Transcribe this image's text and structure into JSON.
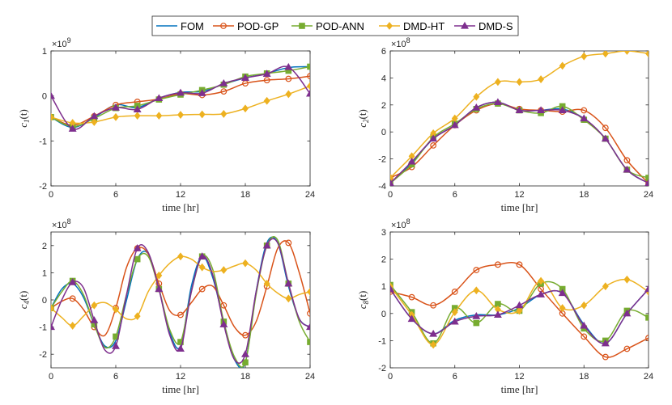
{
  "legend": {
    "entries": [
      {
        "name": "FOM",
        "color": "#0072BD",
        "marker": "none"
      },
      {
        "name": "POD-GP",
        "color": "#D95319",
        "marker": "circle"
      },
      {
        "name": "POD-ANN",
        "color": "#77AC30",
        "marker": "square"
      },
      {
        "name": "DMD-HT",
        "color": "#EDB120",
        "marker": "diamond"
      },
      {
        "name": "DMD-S",
        "color": "#7E2F8E",
        "marker": "triangle"
      }
    ]
  },
  "chart_data": [
    {
      "type": "line",
      "title": "",
      "xlabel": "time [hr]",
      "ylabel_main": "c",
      "ylabel_sub": "1",
      "ylabel_suffix": "(t)",
      "exponent_label": "×10",
      "exponent_power": "9",
      "xlim": [
        0,
        24
      ],
      "ylim": [
        -2,
        1
      ],
      "xticks": [
        0,
        6,
        12,
        18,
        24
      ],
      "yticks": [
        -2,
        -1,
        0,
        1
      ],
      "series": [
        {
          "name": "FOM",
          "x": [
            0,
            2,
            4,
            6,
            8,
            10,
            12,
            14,
            16,
            18,
            20,
            22,
            24
          ],
          "y": [
            -0.47,
            -0.7,
            -0.48,
            -0.2,
            -0.26,
            -0.05,
            0.08,
            0.1,
            0.26,
            0.4,
            0.5,
            0.63,
            0.65
          ]
        },
        {
          "name": "POD-GP",
          "x": [
            0,
            2,
            4,
            6,
            8,
            10,
            12,
            14,
            16,
            18,
            20,
            22,
            24
          ],
          "y": [
            -0.47,
            -0.65,
            -0.45,
            -0.2,
            -0.13,
            -0.07,
            0.05,
            0.02,
            0.1,
            0.28,
            0.35,
            0.38,
            0.44
          ]
        },
        {
          "name": "POD-ANN",
          "x": [
            0,
            2,
            4,
            6,
            8,
            10,
            12,
            14,
            16,
            18,
            20,
            22,
            24
          ],
          "y": [
            -0.47,
            -0.68,
            -0.5,
            -0.27,
            -0.22,
            -0.08,
            0.03,
            0.13,
            0.25,
            0.43,
            0.5,
            0.56,
            0.65
          ]
        },
        {
          "name": "DMD-HT",
          "x": [
            0,
            2,
            4,
            6,
            8,
            10,
            12,
            14,
            16,
            18,
            20,
            22,
            24
          ],
          "y": [
            -0.47,
            -0.6,
            -0.58,
            -0.47,
            -0.44,
            -0.44,
            -0.42,
            -0.41,
            -0.4,
            -0.28,
            -0.11,
            0.04,
            0.22
          ]
        },
        {
          "name": "DMD-S",
          "x": [
            0,
            2,
            4,
            6,
            8,
            10,
            12,
            14,
            16,
            18,
            20,
            22,
            24
          ],
          "y": [
            0.0,
            -0.73,
            -0.45,
            -0.26,
            -0.3,
            -0.05,
            0.07,
            0.06,
            0.28,
            0.4,
            0.49,
            0.64,
            0.05
          ]
        }
      ]
    },
    {
      "type": "line",
      "title": "",
      "xlabel": "time [hr]",
      "ylabel_main": "c",
      "ylabel_sub": "2",
      "ylabel_suffix": "(t)",
      "exponent_label": "×10",
      "exponent_power": "8",
      "xlim": [
        0,
        24
      ],
      "ylim": [
        -4,
        6
      ],
      "xticks": [
        0,
        6,
        12,
        18,
        24
      ],
      "yticks": [
        -4,
        -2,
        0,
        2,
        4,
        6
      ],
      "series": [
        {
          "name": "FOM",
          "x": [
            0,
            2,
            4,
            6,
            8,
            10,
            12,
            14,
            16,
            18,
            20,
            22,
            24
          ],
          "y": [
            -3.8,
            -2.3,
            -0.5,
            0.5,
            1.8,
            2.2,
            1.6,
            1.6,
            1.7,
            1.0,
            -0.5,
            -2.8,
            -3.8
          ]
        },
        {
          "name": "POD-GP",
          "x": [
            0,
            2,
            4,
            6,
            8,
            10,
            12,
            14,
            16,
            18,
            20,
            22,
            24
          ],
          "y": [
            -3.4,
            -2.6,
            -1.0,
            0.5,
            1.6,
            2.1,
            1.7,
            1.6,
            1.5,
            1.6,
            0.3,
            -2.1,
            -3.8
          ]
        },
        {
          "name": "POD-ANN",
          "x": [
            0,
            2,
            4,
            6,
            8,
            10,
            12,
            14,
            16,
            18,
            20,
            22,
            24
          ],
          "y": [
            -3.8,
            -2.4,
            -0.4,
            0.6,
            1.7,
            2.1,
            1.6,
            1.4,
            1.9,
            0.9,
            -0.5,
            -2.8,
            -3.4
          ]
        },
        {
          "name": "DMD-HT",
          "x": [
            0,
            2,
            4,
            6,
            8,
            10,
            12,
            14,
            16,
            18,
            20,
            22,
            24
          ],
          "y": [
            -3.4,
            -1.8,
            -0.1,
            1.0,
            2.6,
            3.7,
            3.7,
            3.9,
            4.9,
            5.6,
            5.8,
            6.0,
            5.8
          ]
        },
        {
          "name": "DMD-S",
          "x": [
            0,
            2,
            4,
            6,
            8,
            10,
            12,
            14,
            16,
            18,
            20,
            22,
            24
          ],
          "y": [
            -3.8,
            -2.2,
            -0.5,
            0.5,
            1.8,
            2.2,
            1.6,
            1.6,
            1.6,
            1.0,
            -0.5,
            -2.8,
            -3.8
          ]
        }
      ]
    },
    {
      "type": "line",
      "title": "",
      "xlabel": "time [hr]",
      "ylabel_main": "c",
      "ylabel_sub": "4",
      "ylabel_suffix": "(t)",
      "exponent_label": "×10",
      "exponent_power": "8",
      "xlim": [
        0,
        24
      ],
      "ylim": [
        -2.5,
        2.5
      ],
      "xticks": [
        0,
        6,
        12,
        18,
        24
      ],
      "yticks": [
        -2,
        -1,
        0,
        1,
        2
      ],
      "series": [
        {
          "name": "FOM",
          "x": [
            0,
            1,
            2,
            3,
            4,
            5,
            6,
            7,
            8,
            9,
            10,
            11,
            12,
            13,
            14,
            15,
            16,
            17,
            18,
            19,
            20,
            21,
            22,
            23,
            24
          ],
          "y": [
            -0.3,
            0.4,
            0.6,
            0.1,
            -0.9,
            -1.7,
            -1.5,
            0.0,
            1.5,
            1.7,
            0.4,
            -1.2,
            -1.7,
            0.5,
            1.6,
            0.8,
            -0.8,
            -2.2,
            -2.3,
            0.3,
            2.1,
            2.1,
            0.5,
            -0.7,
            -1.0
          ]
        },
        {
          "name": "POD-GP",
          "x": [
            0,
            1,
            2,
            3,
            4,
            5,
            6,
            7,
            8,
            9,
            10,
            11,
            12,
            13,
            14,
            15,
            16,
            17,
            18,
            19,
            20,
            21,
            22,
            23,
            24
          ],
          "y": [
            -0.3,
            -0.05,
            0.05,
            -0.35,
            -1.0,
            -1.3,
            -0.3,
            1.2,
            1.9,
            1.7,
            0.6,
            -0.4,
            -0.55,
            -0.1,
            0.4,
            0.5,
            -0.2,
            -1.0,
            -1.3,
            -0.8,
            0.5,
            1.9,
            2.1,
            1.0,
            -0.5
          ]
        },
        {
          "name": "POD-ANN",
          "x": [
            0,
            1,
            2,
            3,
            4,
            5,
            6,
            7,
            8,
            9,
            10,
            11,
            12,
            13,
            14,
            15,
            16,
            17,
            18,
            19,
            20,
            21,
            22,
            23,
            24
          ],
          "y": [
            -0.3,
            0.3,
            0.7,
            0.2,
            -0.9,
            -1.75,
            -1.35,
            0.2,
            1.5,
            1.6,
            0.4,
            -1.1,
            -1.55,
            0.3,
            1.6,
            1.1,
            -0.8,
            -2.1,
            -2.3,
            0.2,
            2.0,
            2.2,
            0.6,
            -0.8,
            -1.55
          ]
        },
        {
          "name": "DMD-HT",
          "x": [
            0,
            1,
            2,
            3,
            4,
            5,
            6,
            7,
            8,
            9,
            10,
            11,
            12,
            13,
            14,
            15,
            16,
            17,
            18,
            19,
            20,
            21,
            22,
            23,
            24
          ],
          "y": [
            -0.3,
            -0.65,
            -0.95,
            -0.6,
            -0.2,
            -0.1,
            -0.35,
            -0.7,
            -0.6,
            0.3,
            0.9,
            1.35,
            1.6,
            1.5,
            1.2,
            1.05,
            1.1,
            1.25,
            1.35,
            1.1,
            0.6,
            0.25,
            0.05,
            0.2,
            0.3
          ]
        },
        {
          "name": "DMD-S",
          "x": [
            0,
            1,
            2,
            3,
            4,
            5,
            6,
            7,
            8,
            9,
            10,
            11,
            12,
            13,
            14,
            15,
            16,
            17,
            18,
            19,
            20,
            21,
            22,
            23,
            24
          ],
          "y": [
            -1.0,
            0.0,
            0.65,
            0.45,
            -0.75,
            -1.85,
            -1.7,
            0.2,
            1.9,
            1.75,
            0.4,
            -1.3,
            -1.8,
            0.3,
            1.6,
            0.9,
            -0.9,
            -2.2,
            -2.0,
            0.3,
            2.0,
            2.1,
            0.6,
            -0.7,
            -1.0
          ]
        }
      ]
    },
    {
      "type": "line",
      "title": "",
      "xlabel": "time [hr]",
      "ylabel_main": "c",
      "ylabel_sub": "8",
      "ylabel_suffix": "(t)",
      "exponent_label": "×10",
      "exponent_power": "8",
      "xlim": [
        0,
        24
      ],
      "ylim": [
        -2,
        3
      ],
      "xticks": [
        0,
        6,
        12,
        18,
        24
      ],
      "yticks": [
        -2,
        -1,
        0,
        1,
        2,
        3
      ],
      "series": [
        {
          "name": "FOM",
          "x": [
            0,
            2,
            4,
            6,
            8,
            10,
            12,
            14,
            16,
            18,
            20,
            22,
            24
          ],
          "y": [
            0.9,
            -0.2,
            -0.75,
            -0.25,
            -0.05,
            -0.05,
            0.2,
            0.7,
            0.75,
            -0.4,
            -1.1,
            0.0,
            0.9
          ]
        },
        {
          "name": "POD-GP",
          "x": [
            0,
            2,
            4,
            6,
            8,
            10,
            12,
            14,
            16,
            18,
            20,
            22,
            24
          ],
          "y": [
            0.8,
            0.6,
            0.3,
            0.8,
            1.6,
            1.8,
            1.8,
            0.9,
            0.0,
            -0.85,
            -1.6,
            -1.3,
            -0.9
          ]
        },
        {
          "name": "POD-ANN",
          "x": [
            0,
            2,
            4,
            6,
            8,
            10,
            12,
            14,
            16,
            18,
            20,
            22,
            24
          ],
          "y": [
            1.05,
            0.05,
            -1.1,
            0.2,
            -0.35,
            0.35,
            0.1,
            1.1,
            0.9,
            -0.55,
            -1.0,
            0.1,
            -0.15
          ]
        },
        {
          "name": "DMD-HT",
          "x": [
            0,
            2,
            4,
            6,
            8,
            10,
            12,
            14,
            16,
            18,
            20,
            22,
            24
          ],
          "y": [
            1.0,
            -0.05,
            -1.15,
            0.05,
            0.85,
            0.15,
            0.1,
            1.2,
            0.2,
            0.3,
            1.0,
            1.25,
            0.8
          ]
        },
        {
          "name": "DMD-S",
          "x": [
            0,
            2,
            4,
            6,
            8,
            10,
            12,
            14,
            16,
            18,
            20,
            22,
            24
          ],
          "y": [
            0.9,
            -0.2,
            -0.75,
            -0.3,
            -0.1,
            -0.05,
            0.3,
            0.7,
            0.75,
            -0.45,
            -1.1,
            0.0,
            0.9
          ]
        }
      ]
    }
  ]
}
